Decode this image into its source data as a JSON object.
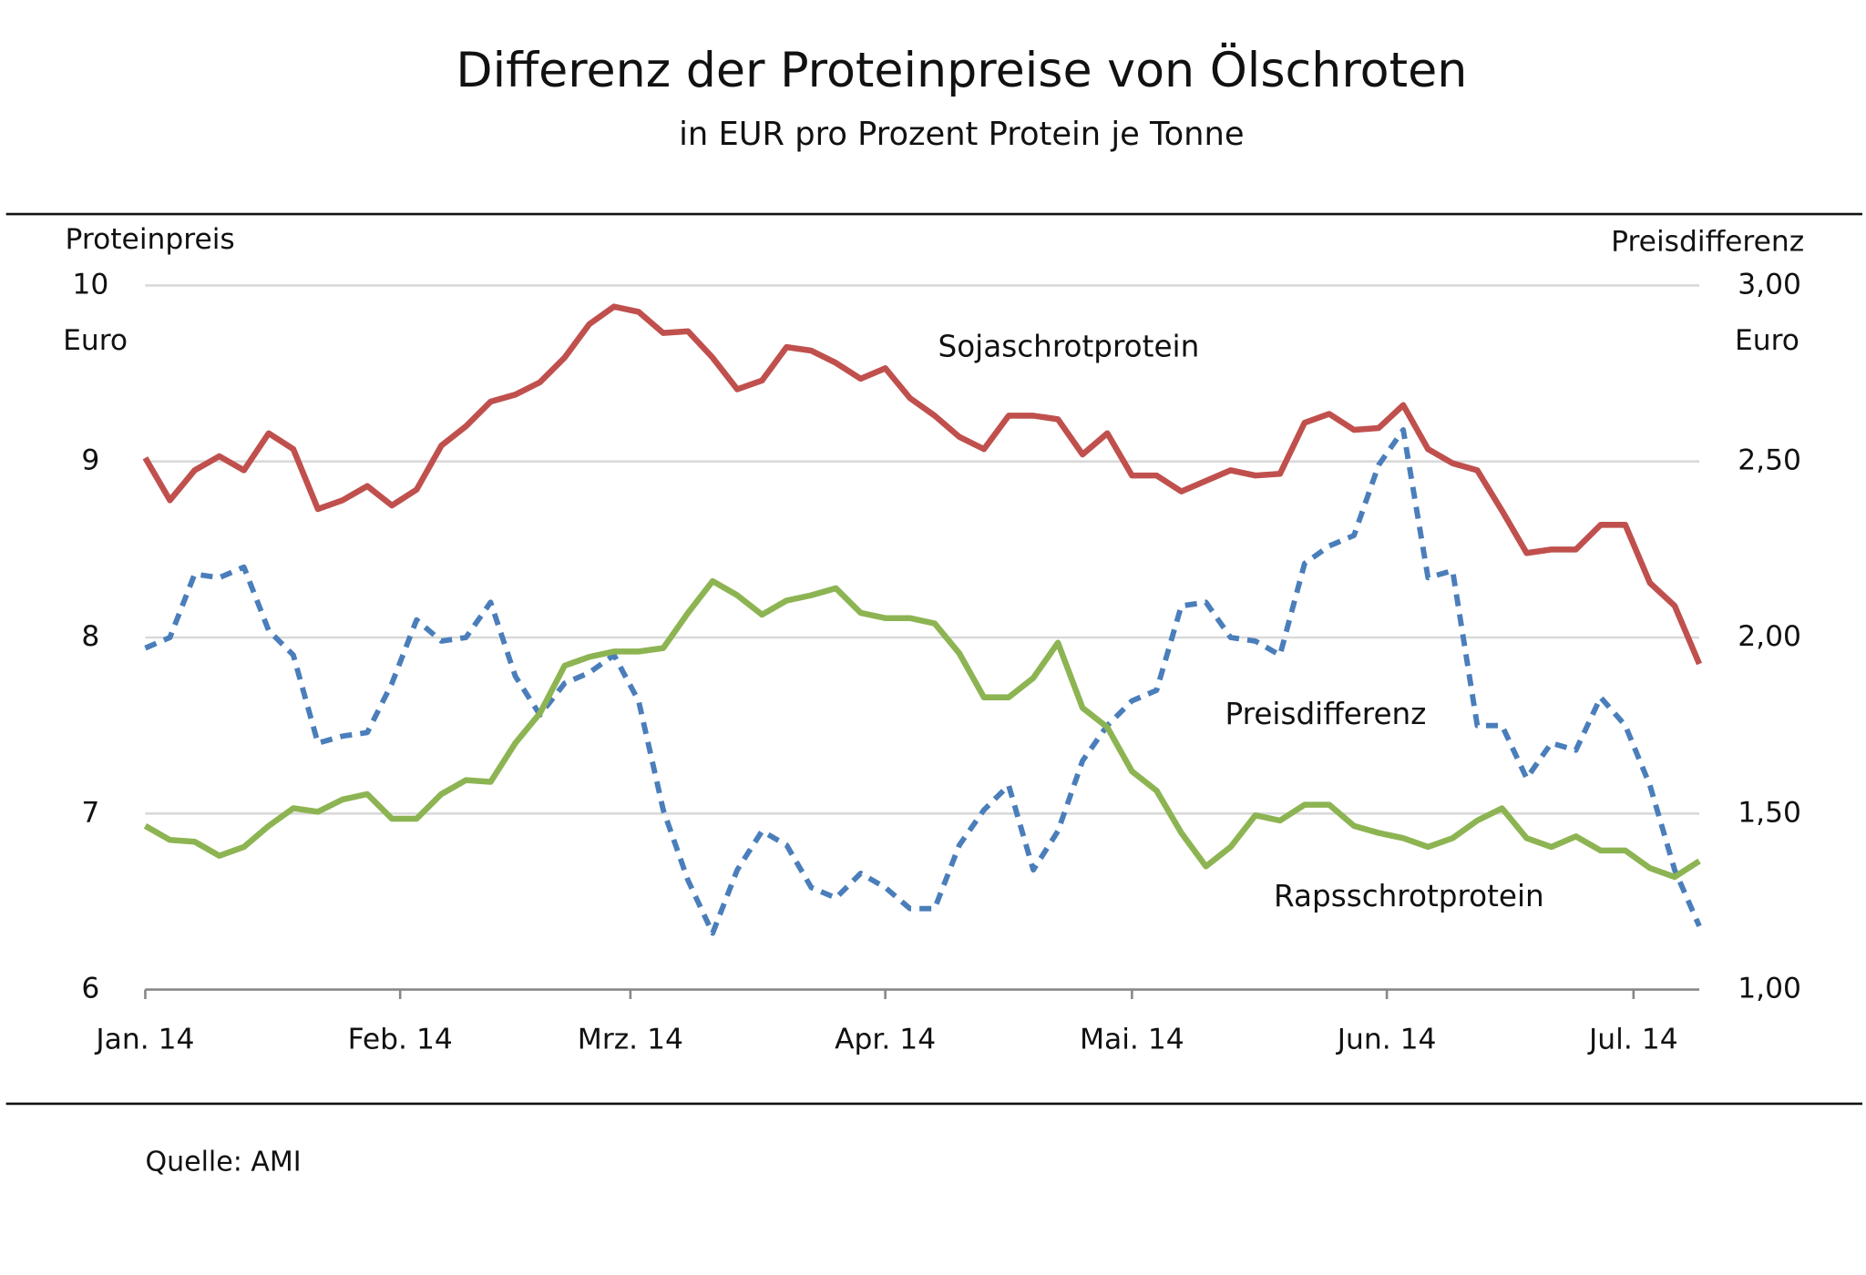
{
  "chart_data": {
    "type": "line",
    "title": "Differenz der Proteinpreise von Ölschroten",
    "subtitle": "in EUR pro Prozent Protein je Tonne",
    "y_label": "Proteinpreis",
    "y_unit": "Euro",
    "y2_label": "Preisdifferenz",
    "y2_unit": "Euro",
    "source": "Quelle: AMI",
    "x": [
      0,
      3,
      6,
      9,
      12,
      15,
      18,
      21,
      24,
      27,
      30,
      33,
      36,
      39,
      42,
      45,
      48,
      51,
      54,
      57,
      60,
      63,
      66,
      69,
      72,
      75,
      78,
      81,
      84,
      87,
      90,
      93,
      96,
      99,
      102,
      105,
      108,
      111,
      114,
      117,
      120,
      123,
      126,
      129,
      132,
      135,
      138,
      141,
      144,
      147,
      150,
      153,
      156,
      159,
      162,
      165,
      168,
      171,
      174,
      177,
      180,
      183,
      186,
      189
    ],
    "xlim": [
      0,
      189
    ],
    "xticks": [
      {
        "value": 0,
        "label": "Jan. 14"
      },
      {
        "value": 31,
        "label": "Feb. 14"
      },
      {
        "value": 59,
        "label": "Mrz. 14"
      },
      {
        "value": 90,
        "label": "Apr. 14"
      },
      {
        "value": 120,
        "label": "Mai. 14"
      },
      {
        "value": 151,
        "label": "Jun. 14"
      },
      {
        "value": 181,
        "label": "Jul. 14"
      }
    ],
    "ylim": [
      6,
      10
    ],
    "yticks": [
      6,
      7,
      8,
      9,
      10
    ],
    "y2lim": [
      1,
      3
    ],
    "y2ticks": [
      {
        "value": 1,
        "label": "1,00"
      },
      {
        "value": 1.5,
        "label": "1,50"
      },
      {
        "value": 2,
        "label": "2,00"
      },
      {
        "value": 2.5,
        "label": "2,50"
      },
      {
        "value": 3,
        "label": "3,00"
      }
    ],
    "grid": true,
    "series": [
      {
        "name": "Sojaschrotprotein",
        "color": "#c0504d",
        "dash": false,
        "values": [
          9.02,
          8.78,
          8.95,
          9.03,
          8.95,
          9.16,
          9.07,
          8.73,
          8.78,
          8.86,
          8.75,
          8.84,
          9.09,
          9.2,
          9.34,
          9.38,
          9.45,
          9.59,
          9.78,
          9.88,
          9.85,
          9.73,
          9.74,
          9.59,
          9.41,
          9.46,
          9.65,
          9.63,
          9.56,
          9.47,
          9.53,
          9.36,
          9.26,
          9.14,
          9.07,
          9.26,
          9.26,
          9.24,
          9.04,
          9.16,
          8.92,
          8.92,
          8.83,
          8.89,
          8.95,
          8.92,
          8.93,
          9.22,
          9.27,
          9.18,
          9.19,
          9.32,
          9.07,
          8.99,
          8.95,
          8.72,
          8.48,
          8.5,
          8.5,
          8.64,
          8.64,
          8.31,
          8.18,
          7.85
        ]
      },
      {
        "name": "Preisdifferenz",
        "color": "#4a7ebb",
        "dash": true,
        "axis": "y2",
        "values": [
          1.97,
          2.0,
          2.18,
          2.17,
          2.2,
          2.02,
          1.95,
          1.7,
          1.72,
          1.73,
          1.87,
          2.05,
          1.99,
          2.0,
          2.1,
          1.89,
          1.78,
          1.87,
          1.9,
          1.95,
          1.82,
          1.51,
          1.31,
          1.16,
          1.34,
          1.45,
          1.41,
          1.29,
          1.26,
          1.33,
          1.29,
          1.23,
          1.23,
          1.41,
          1.51,
          1.58,
          1.34,
          1.45,
          1.65,
          1.75,
          1.82,
          1.85,
          2.09,
          2.1,
          2.0,
          1.99,
          1.95,
          2.21,
          2.26,
          2.29,
          2.49,
          2.59,
          2.17,
          2.19,
          1.75,
          1.75,
          1.6,
          1.7,
          1.68,
          1.83,
          1.75,
          1.58,
          1.34,
          1.18
        ]
      },
      {
        "name": "Rapsschrotprotein",
        "color": "#8db452",
        "dash": false,
        "values": [
          6.93,
          6.85,
          6.84,
          6.76,
          6.81,
          6.93,
          7.03,
          7.01,
          7.08,
          7.11,
          6.97,
          6.97,
          7.11,
          7.19,
          7.18,
          7.4,
          7.57,
          7.84,
          7.89,
          7.92,
          7.92,
          7.94,
          8.14,
          8.32,
          8.24,
          8.13,
          8.21,
          8.24,
          8.28,
          8.14,
          8.11,
          8.11,
          8.08,
          7.91,
          7.66,
          7.66,
          7.77,
          7.97,
          7.6,
          7.49,
          7.24,
          7.13,
          6.89,
          6.7,
          6.81,
          6.99,
          6.96,
          7.05,
          7.05,
          6.93,
          6.89,
          6.86,
          6.81,
          6.86,
          6.96,
          7.03,
          6.86,
          6.81,
          6.87,
          6.79,
          6.79,
          6.69,
          6.64,
          6.73
        ]
      }
    ]
  }
}
